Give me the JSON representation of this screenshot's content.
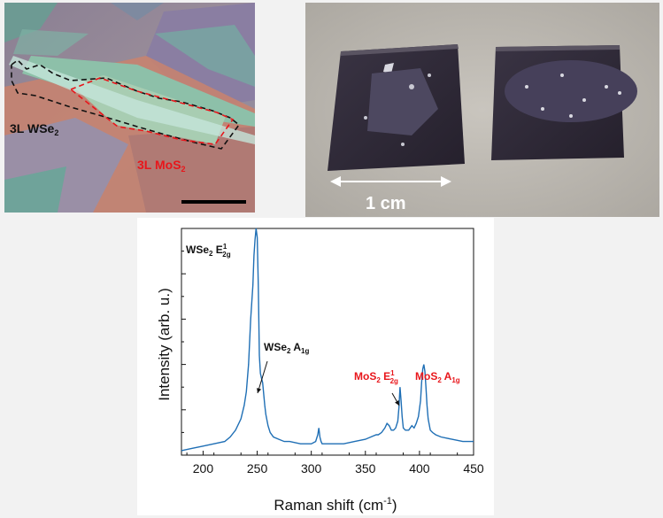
{
  "panel_a": {
    "label_wse2": "3L WSe",
    "label_wse2_sub": "2",
    "label_mos2": "3L MoS",
    "label_mos2_sub": "2",
    "colors": {
      "wse2_outline": "#111111",
      "mos2_outline": "#e8161b",
      "mos2_text": "#e8161b"
    }
  },
  "panel_b": {
    "scale_label": "1 cm"
  },
  "chart_data": {
    "type": "line",
    "xlabel": "Raman shift (cm",
    "xlabel_sup": "-1",
    "xlabel_end": ")",
    "ylabel": "Intensity (arb. u.)",
    "xlim": [
      180,
      450
    ],
    "ylim": [
      0,
      100
    ],
    "xticks": [
      200,
      250,
      300,
      350,
      400,
      450
    ],
    "series_color": "#1f6fb5",
    "series": [
      {
        "x": [
          180,
          190,
          200,
          210,
          220,
          225,
          230,
          235,
          238,
          240,
          242,
          244,
          246,
          247,
          248,
          249,
          250,
          251,
          252,
          253,
          254,
          255,
          256,
          257,
          258,
          260,
          262,
          265,
          270,
          275,
          280,
          290,
          300,
          304,
          306,
          307,
          308,
          309,
          310,
          312,
          315,
          320,
          330,
          340,
          350,
          355,
          360,
          362,
          365,
          368,
          370,
          372,
          374,
          376,
          378,
          380,
          381,
          382,
          383,
          384,
          385,
          387,
          390,
          393,
          395,
          397,
          399,
          401,
          402,
          403,
          404,
          405,
          406,
          407,
          408,
          410,
          412,
          415,
          420,
          430,
          440,
          450
        ],
        "y": [
          2,
          3,
          4,
          5,
          6,
          8,
          11,
          16,
          22,
          28,
          40,
          60,
          75,
          88,
          95,
          100,
          96,
          75,
          44,
          36,
          34,
          32,
          27,
          22,
          18,
          13,
          10,
          8,
          7,
          6,
          6,
          5,
          5,
          6,
          9,
          12,
          8,
          6,
          5,
          5,
          5,
          5,
          5,
          6,
          7,
          8,
          9,
          9,
          10,
          12,
          14,
          13,
          11,
          11,
          12,
          15,
          21,
          30,
          24,
          17,
          12,
          11,
          11,
          13,
          12,
          14,
          17,
          24,
          32,
          38,
          40,
          37,
          30,
          22,
          16,
          11,
          10,
          9,
          8,
          7,
          6,
          6
        ]
      }
    ],
    "annotations": [
      {
        "text": "WSe",
        "sub": "2",
        "extra": " E",
        "sup": "1",
        "sub2": "2g",
        "color": "#111111"
      },
      {
        "text": "WSe",
        "sub": "2",
        "extra": " A",
        "sub2": "1g",
        "color": "#111111"
      },
      {
        "text": "MoS",
        "sub": "2",
        "extra": " E",
        "sup": "1",
        "sub2": "2g",
        "color": "#e8161b"
      },
      {
        "text": "MoS",
        "sub": "2",
        "extra": " A",
        "sub2": "1g",
        "color": "#e8161b"
      }
    ]
  }
}
